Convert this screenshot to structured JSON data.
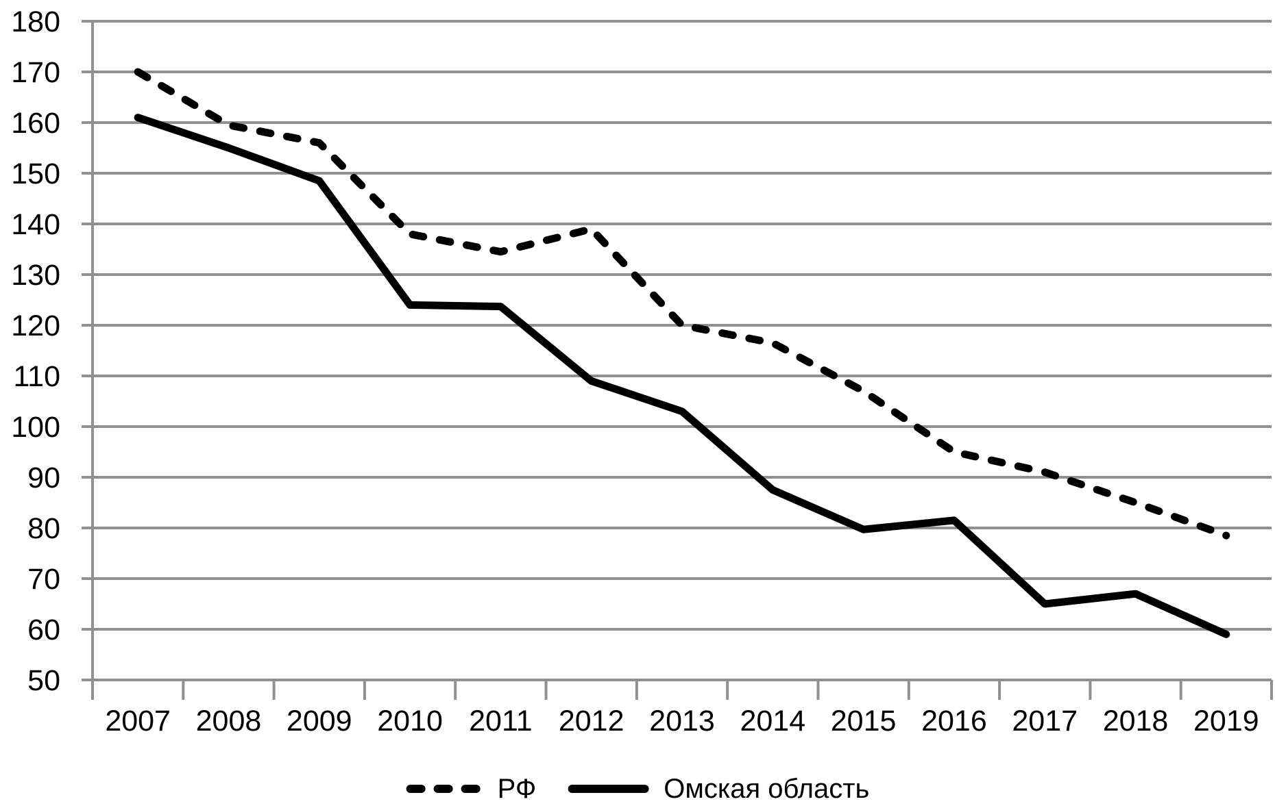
{
  "chart_data": {
    "type": "line",
    "categories": [
      "2007",
      "2008",
      "2009",
      "2010",
      "2011",
      "2012",
      "2013",
      "2014",
      "2015",
      "2016",
      "2017",
      "2018",
      "2019"
    ],
    "series": [
      {
        "name": "РФ",
        "style": "dashed",
        "values": [
          170,
          159.5,
          156,
          138,
          134.5,
          139,
          120,
          116.5,
          107,
          95,
          91,
          85,
          78.5
        ]
      },
      {
        "name": "Омская область",
        "style": "solid",
        "values": [
          161,
          155,
          148.5,
          124,
          123.7,
          109,
          103,
          87.5,
          79.7,
          81.5,
          65,
          67,
          59
        ]
      }
    ],
    "title": "",
    "xlabel": "",
    "ylabel": "",
    "ylim": [
      50,
      180
    ],
    "ytick_step": 10,
    "y_tick_labels": [
      "180",
      "170",
      "160",
      "150",
      "140",
      "130",
      "120",
      "110",
      "100",
      "90",
      "80",
      "70",
      "60",
      "50"
    ],
    "grid": true,
    "legend_position": "bottom",
    "colors": {
      "line": "#000000",
      "grid": "#909090",
      "text": "#000000",
      "background": "#ffffff"
    }
  },
  "legend": {
    "items": [
      {
        "label": "РФ"
      },
      {
        "label": "Омская область"
      }
    ]
  }
}
